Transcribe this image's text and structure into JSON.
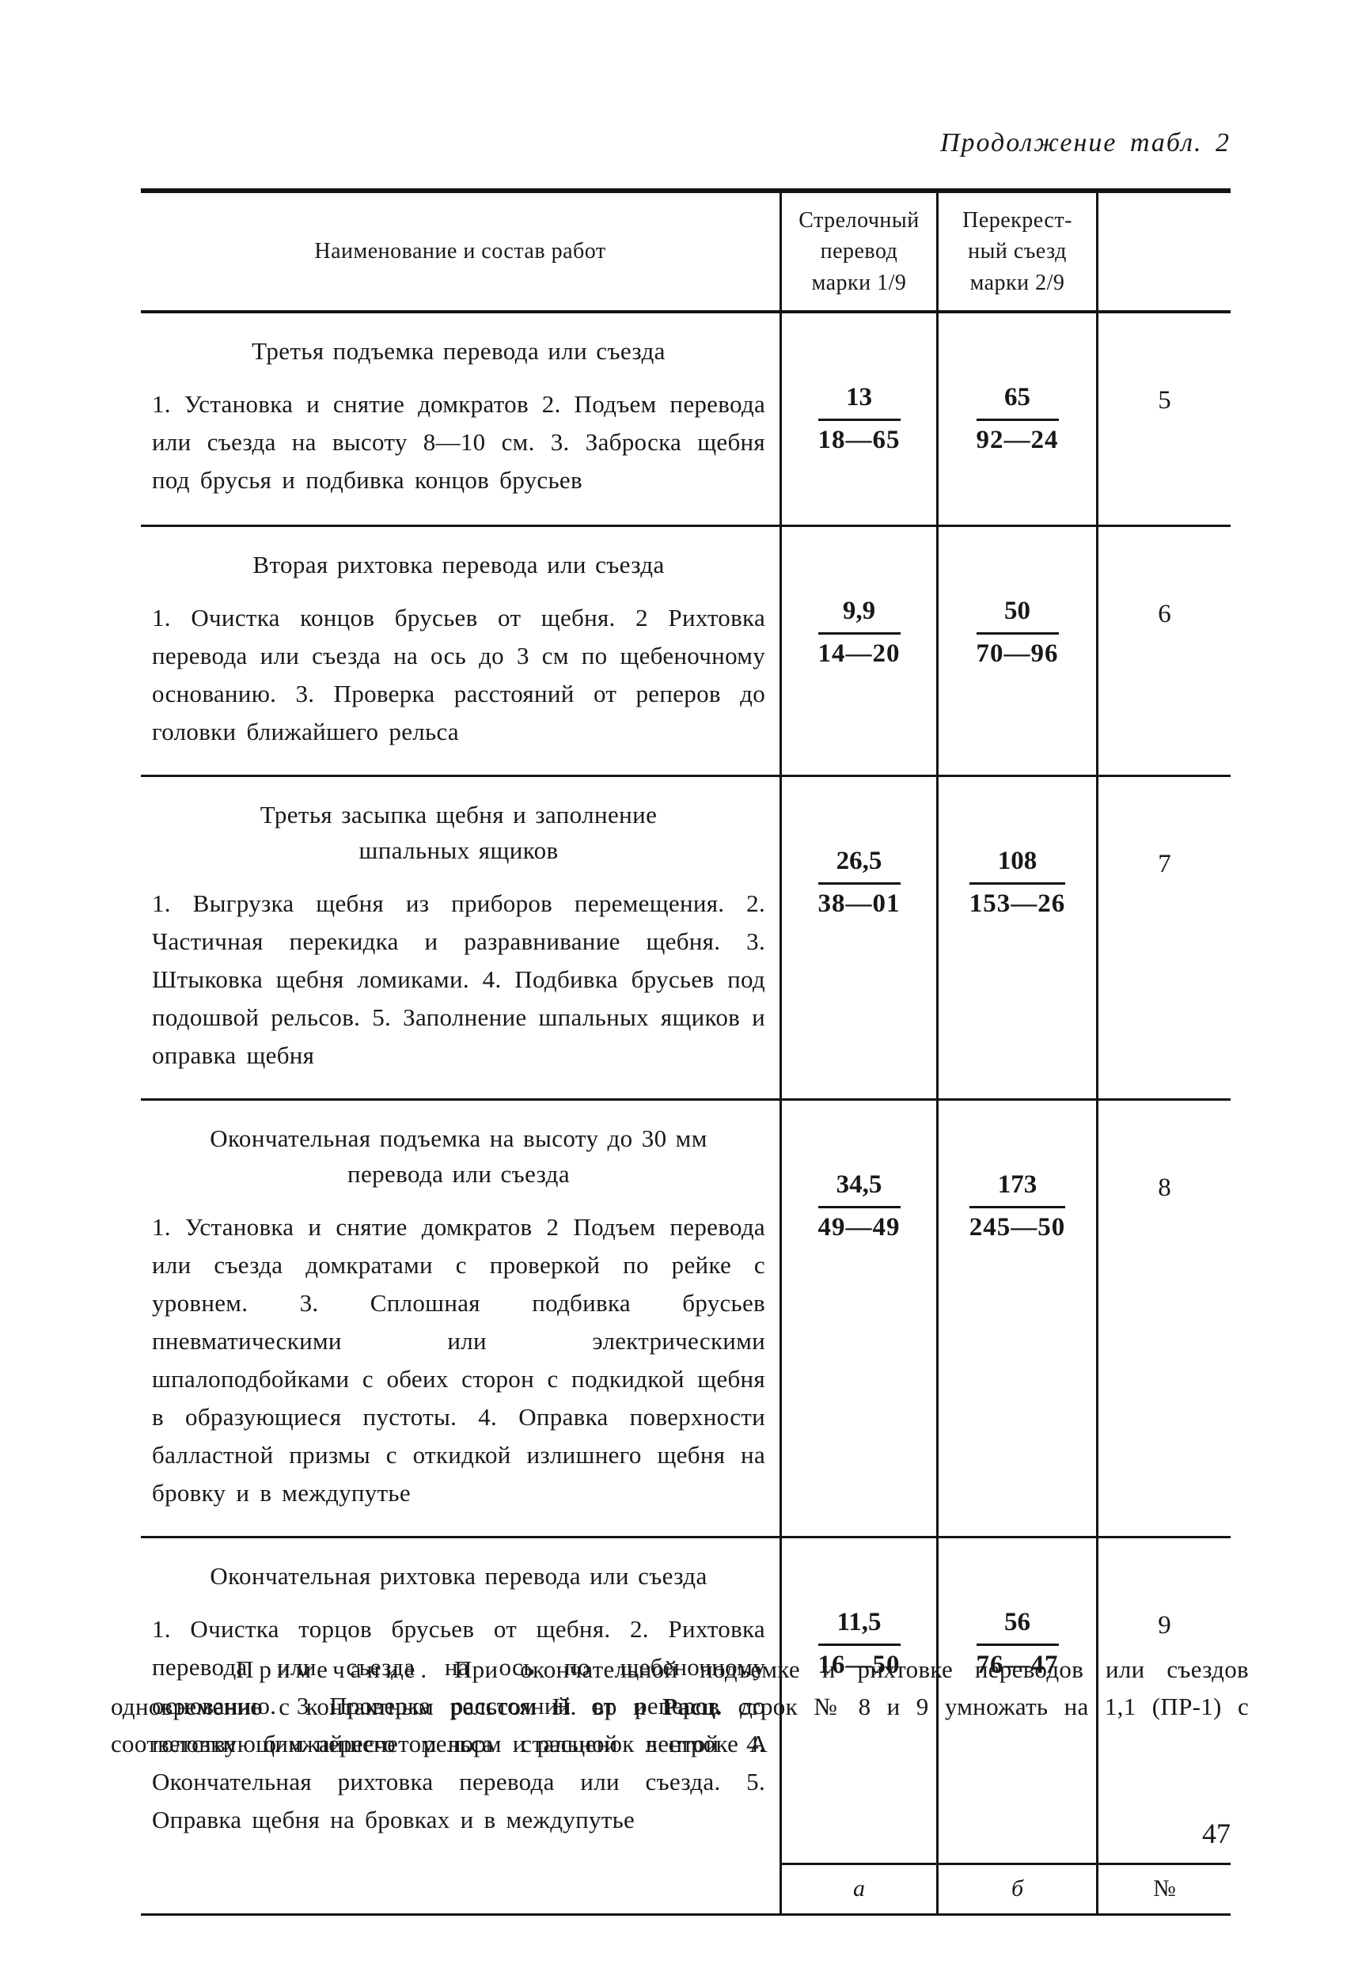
{
  "page": {
    "continuation_label": "Продолжение табл. 2",
    "page_number": "47"
  },
  "table": {
    "headers": {
      "work": "Наименование и состав работ",
      "switch": "Стрелочный\nперевод\nмарки 1/9",
      "crossover": "Перекрест-\nный съезд\nмарки 2/9"
    },
    "rows": [
      {
        "title": "Третья подъемка перевода или съезда",
        "body": "1. Установка и снятие домкратов 2. Подъем перевода или съезда на высоту 8—10 см. 3. Заброска щебня под брусья и подбивка концов брусьев",
        "switch_num": "13",
        "switch_den": "18—65",
        "crossover_num": "65",
        "crossover_den": "92—24",
        "row_no": "5"
      },
      {
        "title": "Вторая рихтовка перевода или съезда",
        "body": "1. Очистка концов брусьев от щебня. 2 Рихтовка перевода или съезда на ось до 3 см по щебеночному основанию. 3. Проверка расстояний от реперов до головки ближайшего рельса",
        "switch_num": "9,9",
        "switch_den": "14—20",
        "crossover_num": "50",
        "crossover_den": "70—96",
        "row_no": "6"
      },
      {
        "title": "Третья засыпка щебня и заполнение\nшпальных ящиков",
        "body": "1. Выгрузка щебня из приборов перемещения. 2. Частичная перекидка и разравнивание щебня. 3. Штыковка щебня ломиками. 4. Подбивка брусьев под подошвой рельсов. 5. Заполнение шпальных ящиков и оправка щебня",
        "switch_num": "26,5",
        "switch_den": "38—01",
        "crossover_num": "108",
        "crossover_den": "153—26",
        "row_no": "7"
      },
      {
        "title": "Окончательная подъемка на высоту до 30 мм\nперевода или съезда",
        "body": "1. Установка и снятие домкратов 2 Подъем перевода или съезда домкратами с проверкой по рейке с уровнем. 3. Сплошная подбивка брусьев пневматическими или электрическими шпалоподбойками с обеих сторон с подкидкой щебня в образующиеся пустоты. 4. Оправка поверхности балластной призмы с откидкой излишнего щебня на бровку и в междупутье",
        "switch_num": "34,5",
        "switch_den": "49—49",
        "crossover_num": "173",
        "crossover_den": "245—50",
        "row_no": "8"
      },
      {
        "title": "Окончательная рихтовка перевода или съезда",
        "body": "1. Очистка торцов брусьев от щебня. 2. Рихтовка перевода или съезда на ось по щебеночному основанию. 3 Проверка расстояний от реперов до головки ближайшего рельса стальной лентой 4. Окончательная рихтовка перевода или съезда. 5. Оправка щебня на бровках и в междупутье",
        "switch_num": "11,5",
        "switch_den": "16—50",
        "crossover_num": "56",
        "crossover_den": "76—47",
        "row_no": "9"
      }
    ],
    "footer": {
      "a": "а",
      "b": "б",
      "no": "№"
    }
  },
  "note": {
    "label": "Примечание.",
    "text_1": " При окончательной подъемке и рихтовке переводов или съездов одновременно с контактным рельсом Н. вр и ",
    "bold": "Расц.",
    "text_2": " строк № 8 и 9 умножать на 1,1 (ПР-1) с соответствующим пересчетом норм и расценок в строке А"
  }
}
